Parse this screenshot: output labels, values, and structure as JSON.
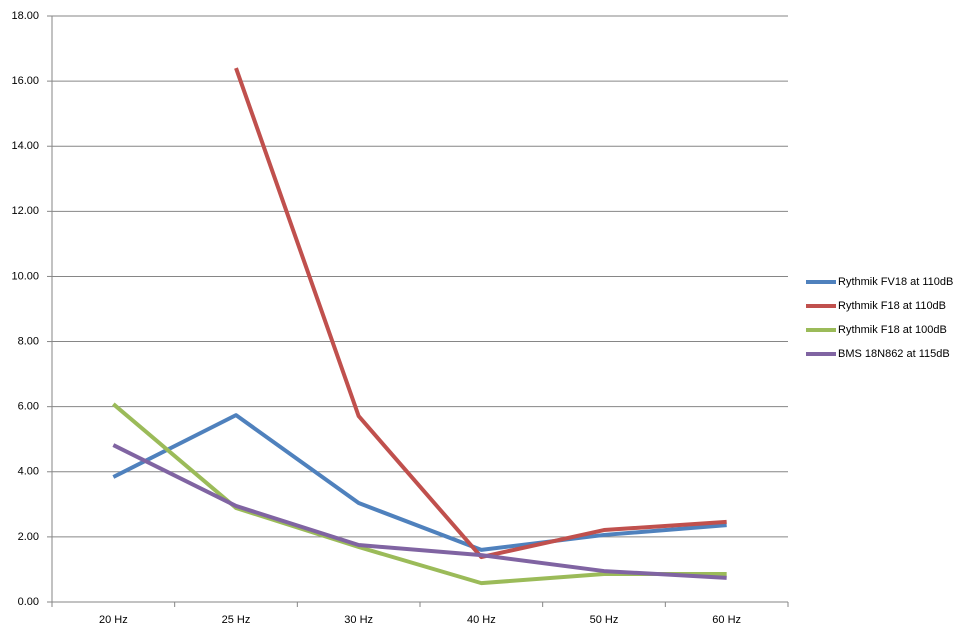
{
  "chart_data": {
    "type": "line",
    "categories": [
      "20 Hz",
      "25 Hz",
      "30 Hz",
      "40 Hz",
      "50 Hz",
      "60 Hz"
    ],
    "series": [
      {
        "name": "Rythmik FV18 at 110dB",
        "color": "#4f81bd",
        "values": [
          3.84,
          5.74,
          3.04,
          1.6,
          2.06,
          2.36
        ]
      },
      {
        "name": "Rythmik F18 at 110dB",
        "color": "#c0504d",
        "values": [
          null,
          16.4,
          5.71,
          1.38,
          2.21,
          2.46
        ]
      },
      {
        "name": "Rythmik F18 at 100dB",
        "color": "#9bbb59",
        "values": [
          6.08,
          2.89,
          1.69,
          0.58,
          0.86,
          0.86
        ]
      },
      {
        "name": "BMS 18N862 at 115dB",
        "color": "#8064a2",
        "values": [
          4.82,
          2.95,
          1.75,
          1.44,
          0.95,
          0.74
        ]
      }
    ],
    "ylim": [
      0,
      18
    ],
    "yticks": [
      {
        "value": 0,
        "label": "0.00"
      },
      {
        "value": 2,
        "label": "2.00"
      },
      {
        "value": 4,
        "label": "4.00"
      },
      {
        "value": 6,
        "label": "6.00"
      },
      {
        "value": 8,
        "label": "8.00"
      },
      {
        "value": 10,
        "label": "10.00"
      },
      {
        "value": 12,
        "label": "12.00"
      },
      {
        "value": 14,
        "label": "14.00"
      },
      {
        "value": 16,
        "label": "16.00"
      },
      {
        "value": 18,
        "label": "18.00"
      }
    ],
    "grid": true,
    "legend": "right"
  }
}
